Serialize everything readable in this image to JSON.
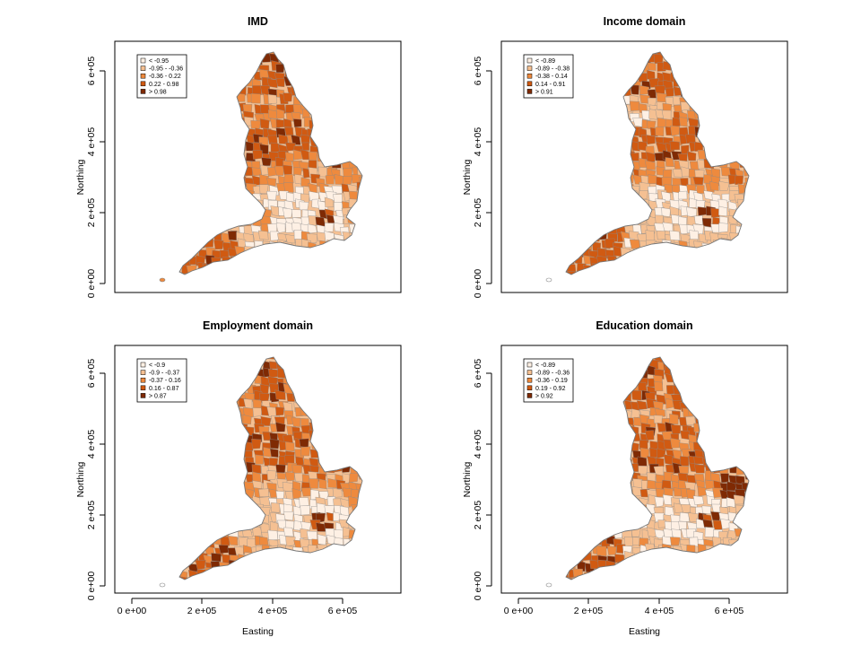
{
  "colors": {
    "classes": [
      "#fef0e4",
      "#f5c092",
      "#ee8a3e",
      "#d05a12",
      "#7f2a04"
    ],
    "boundary": "#8a8a8a",
    "background": "#ffffff"
  },
  "panels": [
    {
      "title": "IMD",
      "legend": [
        "< -0.95",
        "-0.95 - -0.36",
        "-0.36 - 0.22",
        "0.22 - 0.98",
        "> 0.98"
      ]
    },
    {
      "title": "Income domain",
      "legend": [
        "< -0.89",
        "-0.89 - -0.38",
        "-0.38 - 0.14",
        "0.14 - 0.91",
        "> 0.91"
      ]
    },
    {
      "title": "Employment domain",
      "legend": [
        "< -0.9",
        "-0.9 - -0.37",
        "-0.37 - 0.16",
        "0.16 - 0.87",
        "> 0.87"
      ]
    },
    {
      "title": "Education domain",
      "legend": [
        "< -0.89",
        "-0.89 - -0.36",
        "-0.36 - 0.19",
        "0.19 - 0.92",
        "> 0.92"
      ]
    }
  ],
  "axes": {
    "ylabel": "Northing",
    "xlabel": "Easting",
    "yticks": [
      "0 e+00",
      "2 e+05",
      "4 e+05",
      "6 e+05"
    ],
    "xticks": [
      "0 e+00",
      "2 e+05",
      "4 e+05",
      "6 e+05"
    ]
  }
}
